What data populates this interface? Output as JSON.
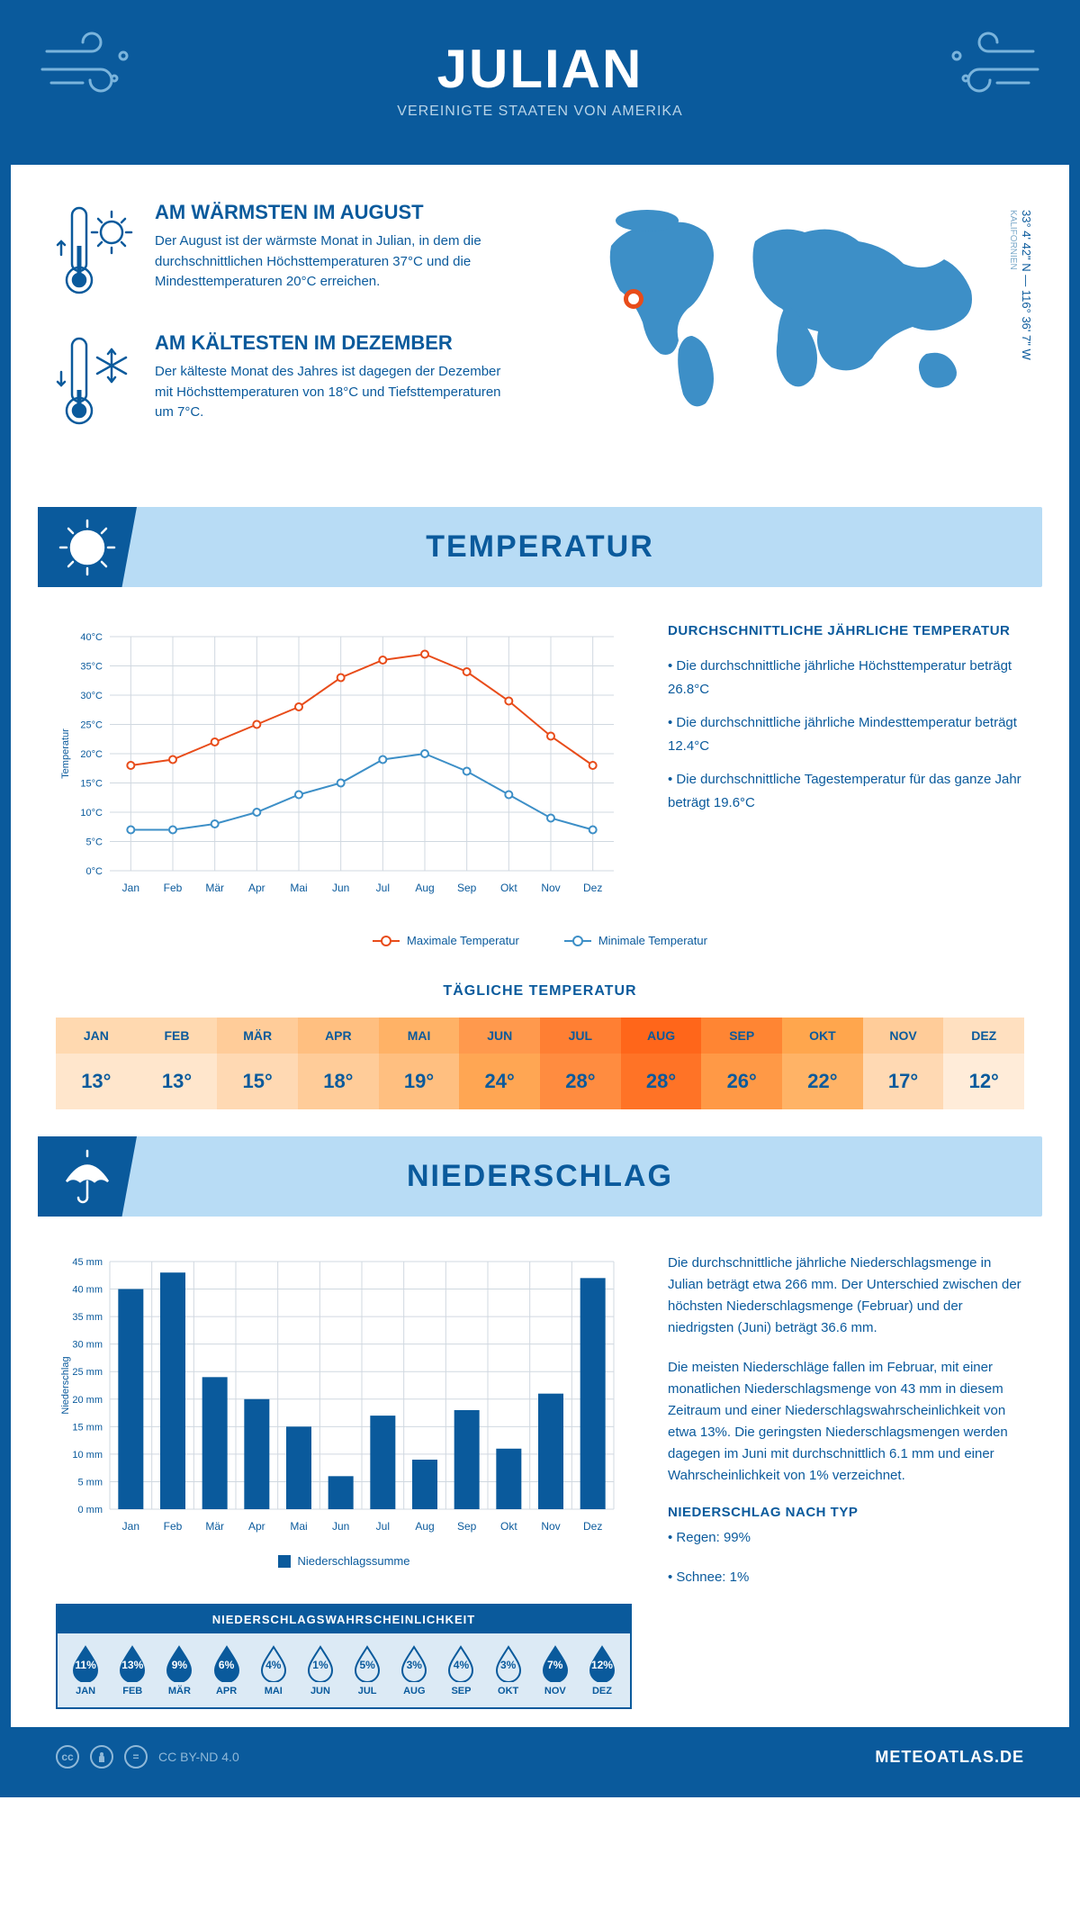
{
  "header": {
    "title": "JULIAN",
    "subtitle": "VEREINIGTE STAATEN VON AMERIKA"
  },
  "coords": {
    "lat": "33° 4' 42\" N",
    "sep": " — ",
    "lon": "116° 36' 7\" W",
    "region": "KALIFORNIEN"
  },
  "warmest": {
    "title": "AM WÄRMSTEN IM AUGUST",
    "text": "Der August ist der wärmste Monat in Julian, in dem die durchschnittlichen Höchsttemperaturen 37°C und die Mindesttemperaturen 20°C erreichen."
  },
  "coldest": {
    "title": "AM KÄLTESTEN IM DEZEMBER",
    "text": "Der kälteste Monat des Jahres ist dagegen der Dezember mit Höchsttemperaturen von 18°C und Tiefsttemperaturen um 7°C."
  },
  "temp_section": {
    "title": "TEMPERATUR"
  },
  "temp_chart": {
    "type": "line",
    "months": [
      "Jan",
      "Feb",
      "Mär",
      "Apr",
      "Mai",
      "Jun",
      "Jul",
      "Aug",
      "Sep",
      "Okt",
      "Nov",
      "Dez"
    ],
    "series": {
      "max": {
        "label": "Maximale Temperatur",
        "color": "#e84c1a",
        "values": [
          18,
          19,
          22,
          25,
          28,
          33,
          36,
          37,
          34,
          29,
          23,
          18
        ]
      },
      "min": {
        "label": "Minimale Temperatur",
        "color": "#3d8fc7",
        "values": [
          7,
          7,
          8,
          10,
          13,
          15,
          19,
          20,
          17,
          13,
          9,
          7
        ]
      }
    },
    "ylim": [
      0,
      40
    ],
    "ytick_step": 5,
    "y_unit": "°C",
    "y_axis_title": "Temperatur",
    "grid_color": "#d0d8e0",
    "background_color": "#ffffff",
    "line_width": 2,
    "marker_radius": 4
  },
  "temp_desc": {
    "title": "DURCHSCHNITTLICHE JÄHRLICHE TEMPERATUR",
    "b1": "• Die durchschnittliche jährliche Höchsttemperatur beträgt 26.8°C",
    "b2": "• Die durchschnittliche jährliche Mindesttemperatur beträgt 12.4°C",
    "b3": "• Die durchschnittliche Tagestemperatur für das ganze Jahr beträgt 19.6°C"
  },
  "daily": {
    "title": "TÄGLICHE TEMPERATUR",
    "months": [
      "JAN",
      "FEB",
      "MÄR",
      "APR",
      "MAI",
      "JUN",
      "JUL",
      "AUG",
      "SEP",
      "OKT",
      "NOV",
      "DEZ"
    ],
    "values": [
      "13°",
      "13°",
      "15°",
      "18°",
      "19°",
      "24°",
      "28°",
      "28°",
      "26°",
      "22°",
      "17°",
      "12°"
    ],
    "head_colors": [
      "#ffd9b0",
      "#ffd9b0",
      "#ffcc99",
      "#ffbf80",
      "#ffb266",
      "#ff994d",
      "#ff7f33",
      "#ff661a",
      "#ff8533",
      "#ffa64d",
      "#ffcc99",
      "#ffe0c0"
    ],
    "val_colors": [
      "#ffe6cc",
      "#ffe6cc",
      "#ffd9b3",
      "#ffcc99",
      "#ffbf80",
      "#ffa653",
      "#ff8c40",
      "#ff7326",
      "#ff9946",
      "#ffb366",
      "#ffd9b3",
      "#ffecd9"
    ]
  },
  "precip_section": {
    "title": "NIEDERSCHLAG"
  },
  "precip_chart": {
    "type": "bar",
    "months": [
      "Jan",
      "Feb",
      "Mär",
      "Apr",
      "Mai",
      "Jun",
      "Jul",
      "Aug",
      "Sep",
      "Okt",
      "Nov",
      "Dez"
    ],
    "values": [
      40,
      43,
      24,
      20,
      15,
      6,
      17,
      9,
      18,
      11,
      21,
      42
    ],
    "ylim": [
      0,
      45
    ],
    "ytick_step": 5,
    "y_unit": " mm",
    "y_axis_title": "Niederschlag",
    "bar_color": "#0a5a9c",
    "grid_color": "#d0d8e0",
    "bar_width": 0.6,
    "legend": "Niederschlagssumme"
  },
  "precip_desc": {
    "p1": "Die durchschnittliche jährliche Niederschlagsmenge in Julian beträgt etwa 266 mm. Der Unterschied zwischen der höchsten Niederschlagsmenge (Februar) und der niedrigsten (Juni) beträgt 36.6 mm.",
    "p2": "Die meisten Niederschläge fallen im Februar, mit einer monatlichen Niederschlagsmenge von 43 mm in diesem Zeitraum und einer Niederschlagswahrscheinlichkeit von etwa 13%. Die geringsten Niederschlagsmengen werden dagegen im Juni mit durchschnittlich 6.1 mm und einer Wahrscheinlichkeit von 1% verzeichnet.",
    "type_title": "NIEDERSCHLAG NACH TYP",
    "t1": "• Regen: 99%",
    "t2": "• Schnee: 1%"
  },
  "prob": {
    "title": "NIEDERSCHLAGSWAHRSCHEINLICHKEIT",
    "months": [
      "JAN",
      "FEB",
      "MÄR",
      "APR",
      "MAI",
      "JUN",
      "JUL",
      "AUG",
      "SEP",
      "OKT",
      "NOV",
      "DEZ"
    ],
    "values": [
      "11%",
      "13%",
      "9%",
      "6%",
      "4%",
      "1%",
      "5%",
      "3%",
      "4%",
      "3%",
      "7%",
      "12%"
    ],
    "filled": [
      true,
      true,
      true,
      true,
      false,
      false,
      false,
      false,
      false,
      false,
      true,
      true
    ],
    "fill_color": "#0a5a9c",
    "outline_color": "#0a5a9c"
  },
  "footer": {
    "license": "CC BY-ND 4.0",
    "site": "METEOATLAS.DE"
  }
}
